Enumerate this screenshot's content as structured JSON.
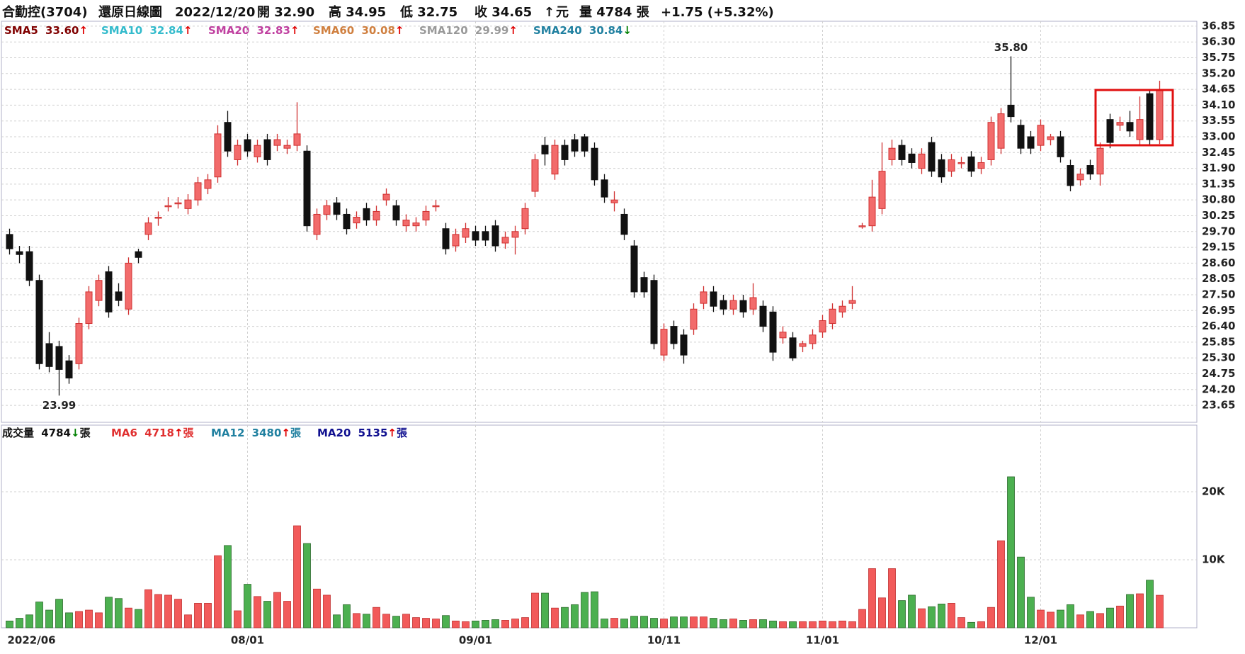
{
  "header": {
    "items": [
      {
        "text": "合勤控(3704)",
        "color": "#111111"
      },
      {
        "text": "還原日線圖",
        "color": "#111111"
      },
      {
        "text": "2022/12/20",
        "color": "#111111"
      },
      {
        "text": "開 32.90",
        "color": "#111111"
      },
      {
        "text": "高 34.95",
        "color": "#111111"
      },
      {
        "text": "低 32.75",
        "color": "#111111"
      },
      {
        "text": "收 34.65",
        "color": "#111111"
      },
      {
        "text": "↑",
        "color": "#e00000"
      },
      {
        "text": "元",
        "color": "#111111"
      },
      {
        "text": "量 4784 張",
        "color": "#111111"
      },
      {
        "text": "+1.75 (+5.32%)",
        "color": "#111111"
      }
    ]
  },
  "chart_data": [
    {
      "type": "candlestick",
      "indicators": [
        {
          "name": "SMA5",
          "value": "33.60",
          "arrow": "↑",
          "color": "#800000",
          "arrow_color": "#e00000"
        },
        {
          "name": "SMA10",
          "value": "32.84",
          "arrow": "↑",
          "color": "#33bbcc",
          "arrow_color": "#e00000"
        },
        {
          "name": "SMA20",
          "value": "32.83",
          "arrow": "↑",
          "color": "#c040a0",
          "arrow_color": "#e00000"
        },
        {
          "name": "SMA60",
          "value": "30.08",
          "arrow": "↑",
          "color": "#d08040",
          "arrow_color": "#e00000"
        },
        {
          "name": "SMA120",
          "value": "29.99",
          "arrow": "↑",
          "color": "#999999",
          "arrow_color": "#e00000"
        },
        {
          "name": "SMA240",
          "value": "30.84",
          "arrow": "↓",
          "color": "#2080a0",
          "arrow_color": "#008000"
        }
      ],
      "annotations": {
        "high_label": "35.80",
        "low_label": "23.99"
      },
      "up_color": "#f26b6b",
      "up_edge": "#d03030",
      "down_color": "#111111",
      "categories": [
        "2022/06",
        null,
        null,
        null,
        null,
        null,
        null,
        null,
        null,
        null,
        null,
        null,
        null,
        null,
        null,
        null,
        null,
        null,
        null,
        null,
        null,
        null,
        null,
        null,
        "08/01",
        null,
        null,
        null,
        null,
        null,
        null,
        null,
        null,
        null,
        null,
        null,
        null,
        null,
        null,
        null,
        null,
        null,
        null,
        null,
        null,
        null,
        null,
        "09/01",
        null,
        null,
        null,
        null,
        null,
        null,
        null,
        null,
        null,
        null,
        null,
        null,
        null,
        null,
        null,
        null,
        null,
        null,
        "10/11",
        null,
        null,
        null,
        null,
        null,
        null,
        null,
        null,
        null,
        null,
        null,
        null,
        null,
        null,
        null,
        "11/01",
        null,
        null,
        null,
        null,
        null,
        null,
        null,
        null,
        null,
        null,
        null,
        null,
        null,
        null,
        null,
        null,
        null,
        null,
        null,
        null,
        null,
        "12/01",
        null,
        null,
        null,
        null,
        null,
        null,
        null,
        null,
        null,
        null,
        null,
        null
      ],
      "open": [
        29.6,
        29.0,
        29.0,
        28.0,
        25.8,
        25.7,
        25.2,
        25.1,
        26.5,
        27.3,
        28.3,
        27.6,
        27.0,
        29.0,
        29.6,
        30.2,
        30.6,
        30.7,
        30.5,
        30.8,
        31.2,
        31.6,
        33.5,
        32.2,
        32.9,
        32.3,
        32.9,
        32.7,
        32.6,
        32.7,
        32.5,
        29.6,
        30.3,
        30.7,
        30.3,
        30.0,
        30.5,
        30.1,
        30.8,
        30.6,
        29.9,
        29.9,
        30.1,
        30.6,
        29.8,
        29.2,
        29.5,
        29.7,
        29.7,
        29.9,
        29.3,
        29.5,
        29.8,
        31.1,
        32.7,
        31.7,
        32.7,
        32.9,
        33.0,
        32.6,
        31.5,
        30.7,
        30.3,
        29.2,
        28.1,
        28.0,
        25.4,
        26.4,
        26.1,
        26.3,
        27.2,
        27.6,
        27.3,
        27.0,
        27.3,
        27.0,
        27.1,
        26.9,
        26.0,
        26.0,
        25.7,
        25.8,
        26.2,
        26.5,
        26.9,
        27.2,
        29.9,
        29.9,
        30.5,
        32.2,
        32.7,
        32.4,
        31.9,
        32.8,
        32.2,
        31.8,
        32.1,
        32.3,
        31.9,
        32.2,
        32.6,
        34.1,
        33.4,
        33.0,
        32.7,
        32.9,
        33.0,
        32.0,
        31.5,
        32.0,
        31.7,
        33.6,
        33.4,
        33.5,
        32.9,
        34.5,
        32.9
      ],
      "high": [
        29.8,
        29.2,
        29.2,
        28.2,
        26.2,
        25.9,
        25.4,
        26.7,
        27.8,
        28.2,
        28.5,
        27.9,
        28.8,
        29.1,
        30.2,
        30.4,
        30.9,
        30.9,
        31.0,
        31.6,
        31.7,
        33.4,
        33.9,
        32.9,
        33.1,
        32.9,
        33.1,
        33.1,
        32.9,
        34.2,
        32.7,
        30.5,
        30.8,
        30.9,
        30.5,
        30.4,
        30.7,
        30.6,
        31.2,
        30.8,
        30.3,
        30.2,
        30.6,
        30.8,
        30.0,
        29.8,
        30.0,
        29.9,
        29.9,
        30.1,
        29.7,
        29.9,
        30.7,
        32.4,
        33.0,
        32.9,
        32.9,
        33.1,
        33.1,
        32.8,
        31.7,
        31.1,
        30.5,
        29.4,
        28.3,
        28.2,
        26.5,
        26.6,
        26.3,
        27.2,
        27.8,
        27.8,
        27.5,
        27.5,
        27.5,
        27.9,
        27.3,
        27.1,
        26.4,
        26.2,
        25.9,
        26.3,
        26.8,
        27.2,
        27.3,
        27.8,
        30.0,
        31.5,
        32.8,
        32.9,
        32.9,
        32.6,
        32.6,
        33.0,
        32.4,
        32.4,
        32.3,
        32.5,
        32.3,
        33.7,
        34.0,
        35.8,
        33.6,
        33.2,
        33.6,
        33.1,
        33.2,
        32.2,
        31.9,
        32.2,
        32.8,
        33.8,
        33.7,
        33.9,
        34.4,
        34.6,
        34.95
      ],
      "low": [
        28.9,
        28.6,
        27.8,
        24.9,
        24.8,
        23.99,
        24.4,
        24.9,
        26.3,
        27.1,
        26.7,
        27.1,
        26.8,
        28.6,
        29.4,
        29.9,
        30.4,
        30.5,
        30.3,
        30.6,
        31.0,
        31.4,
        32.3,
        32.0,
        32.3,
        32.1,
        32.0,
        32.5,
        32.4,
        32.5,
        29.7,
        29.4,
        30.1,
        30.1,
        29.6,
        29.8,
        29.9,
        29.9,
        30.6,
        29.9,
        29.7,
        29.7,
        29.9,
        30.4,
        28.9,
        29.0,
        29.3,
        29.2,
        29.2,
        29.0,
        29.1,
        28.9,
        29.6,
        30.9,
        32.0,
        31.5,
        32.0,
        32.3,
        32.3,
        31.3,
        30.7,
        30.4,
        29.4,
        27.4,
        27.4,
        25.6,
        25.2,
        25.6,
        25.1,
        26.1,
        27.0,
        26.9,
        26.8,
        26.8,
        26.7,
        26.8,
        26.2,
        25.2,
        25.8,
        25.2,
        25.5,
        25.6,
        26.0,
        26.3,
        26.7,
        27.0,
        29.8,
        29.7,
        30.3,
        32.0,
        32.0,
        31.9,
        31.7,
        31.6,
        31.4,
        31.6,
        31.9,
        31.6,
        31.7,
        32.0,
        32.4,
        33.5,
        32.4,
        32.4,
        32.5,
        32.7,
        32.1,
        31.1,
        31.3,
        31.5,
        31.3,
        32.6,
        33.2,
        33.0,
        32.7,
        32.7,
        32.75
      ],
      "close": [
        29.1,
        28.9,
        28.0,
        25.1,
        25.0,
        24.9,
        24.6,
        26.5,
        27.6,
        28.0,
        26.9,
        27.3,
        28.6,
        28.8,
        30.0,
        30.2,
        30.6,
        30.7,
        30.8,
        31.4,
        31.5,
        33.1,
        32.5,
        32.7,
        32.5,
        32.7,
        32.2,
        32.9,
        32.7,
        33.1,
        29.9,
        30.3,
        30.6,
        30.3,
        29.8,
        30.2,
        30.1,
        30.4,
        31.0,
        30.1,
        30.1,
        30.0,
        30.4,
        30.6,
        29.1,
        29.6,
        29.8,
        29.4,
        29.4,
        29.2,
        29.5,
        29.7,
        30.5,
        32.2,
        32.4,
        32.7,
        32.2,
        32.5,
        32.5,
        31.5,
        30.9,
        30.8,
        29.6,
        27.6,
        27.6,
        25.8,
        26.3,
        25.8,
        25.4,
        27.0,
        27.6,
        27.1,
        27.0,
        27.3,
        26.9,
        27.4,
        26.4,
        25.5,
        26.2,
        25.3,
        25.8,
        26.1,
        26.6,
        27.0,
        27.1,
        27.3,
        29.9,
        30.9,
        31.8,
        32.6,
        32.2,
        32.1,
        32.4,
        31.8,
        31.6,
        32.2,
        32.1,
        31.8,
        32.1,
        33.5,
        33.8,
        33.7,
        32.6,
        32.6,
        33.4,
        33.0,
        32.3,
        31.3,
        31.7,
        31.7,
        32.6,
        32.8,
        33.5,
        33.2,
        33.6,
        32.9,
        34.65
      ],
      "ylim": [
        23.06,
        37.02
      ],
      "yticks": [
        {
          "value": 36.85,
          "label": "36.85"
        },
        {
          "value": 36.3,
          "label": "36.30"
        },
        {
          "value": 35.75,
          "label": "35.75"
        },
        {
          "value": 35.2,
          "label": "35.20"
        },
        {
          "value": 34.65,
          "label": "34.65"
        },
        {
          "value": 34.1,
          "label": "34.10"
        },
        {
          "value": 33.55,
          "label": "33.55"
        },
        {
          "value": 33,
          "label": "33.00"
        },
        {
          "value": 32.45,
          "label": "32.45"
        },
        {
          "value": 31.9,
          "label": "31.90"
        },
        {
          "value": 31.35,
          "label": "31.35"
        },
        {
          "value": 30.8,
          "label": "30.80"
        },
        {
          "value": 30.25,
          "label": "30.25"
        },
        {
          "value": 29.7,
          "label": "29.70"
        },
        {
          "value": 29.15,
          "label": "29.15"
        },
        {
          "value": 28.6,
          "label": "28.60"
        },
        {
          "value": 28.05,
          "label": "28.05"
        },
        {
          "value": 27.5,
          "label": "27.50"
        },
        {
          "value": 26.95,
          "label": "26.95"
        },
        {
          "value": 26.4,
          "label": "26.40"
        },
        {
          "value": 25.85,
          "label": "25.85"
        },
        {
          "value": 25.3,
          "label": "25.30"
        },
        {
          "value": 24.75,
          "label": "24.75"
        },
        {
          "value": 24.2,
          "label": "24.20"
        },
        {
          "value": 23.65,
          "label": "23.65"
        }
      ],
      "grid": true
    },
    {
      "type": "bar",
      "indicators": [
        {
          "name": "成交量",
          "value": "4784",
          "arrow": "↓",
          "unit": "張",
          "color": "#111111",
          "arrow_color": "#008000"
        },
        {
          "name": "MA6",
          "value": "4718",
          "arrow": "↑",
          "unit": "張",
          "color": "#e03030",
          "arrow_color": "#e00000"
        },
        {
          "name": "MA12",
          "value": "3480",
          "arrow": "↑",
          "unit": "張",
          "color": "#2080a0",
          "arrow_color": "#e00000"
        },
        {
          "name": "MA20",
          "value": "5135",
          "arrow": "↑",
          "unit": "張",
          "color": "#101090",
          "arrow_color": "#e00000"
        }
      ],
      "up_color": "#f25a5a",
      "down_color": "#4cb050",
      "edge_color": "#2d6a2d",
      "values": [
        1000,
        1400,
        1900,
        3800,
        2600,
        4200,
        2200,
        2400,
        2600,
        2200,
        4500,
        4300,
        2900,
        2700,
        5600,
        4900,
        4800,
        4200,
        1900,
        3600,
        3600,
        10600,
        12100,
        2500,
        6400,
        4600,
        3900,
        5200,
        3900,
        15000,
        12400,
        5700,
        4800,
        1900,
        3400,
        2100,
        2000,
        3000,
        2000,
        1700,
        2000,
        1500,
        1400,
        1300,
        1800,
        1000,
        900,
        1000,
        1100,
        1200,
        1100,
        1300,
        1500,
        5100,
        5100,
        2900,
        3000,
        3400,
        5200,
        5300,
        1300,
        1400,
        1300,
        1700,
        1700,
        1400,
        1300,
        1600,
        1600,
        1600,
        1600,
        1400,
        1200,
        1300,
        1100,
        1200,
        1200,
        1000,
        900,
        900,
        900,
        900,
        1000,
        900,
        1000,
        900,
        2700,
        8700,
        4400,
        8700,
        4000,
        4800,
        2800,
        3100,
        3500,
        3600,
        1500,
        800,
        900,
        3000,
        12800,
        22200,
        10400,
        4500,
        2600,
        2300,
        2600,
        3400,
        1900,
        2400,
        2100,
        2900,
        3200,
        4900,
        5000,
        7000,
        4784
      ],
      "ylim": [
        0,
        29800
      ],
      "yticks": [
        {
          "value": 10000,
          "label": "10K"
        },
        {
          "value": 20000,
          "label": "20K"
        }
      ],
      "grid": true
    }
  ]
}
